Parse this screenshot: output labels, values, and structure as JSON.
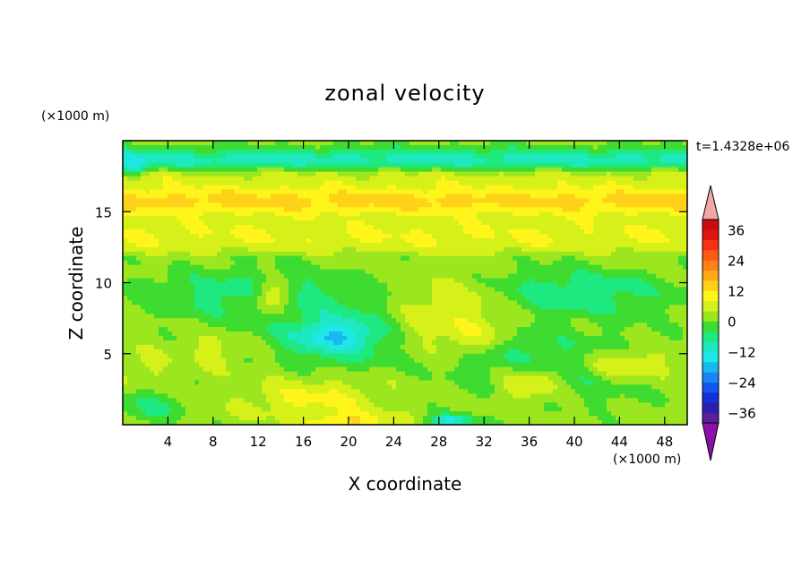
{
  "chart_data": {
    "type": "heatmap",
    "title": "zonal velocity",
    "xlabel": "X coordinate",
    "ylabel": "Z coordinate",
    "x_unit": "(×1000 m)",
    "y_unit": "(×1000 m)",
    "time_label": "t=1.4328e+06",
    "xlim": [
      0,
      50
    ],
    "ylim": [
      0,
      20
    ],
    "x_ticks": [
      4,
      8,
      12,
      16,
      20,
      24,
      28,
      32,
      36,
      40,
      44,
      48
    ],
    "y_ticks": [
      5,
      10,
      15
    ],
    "colorbar": {
      "levels": [
        -40,
        -36,
        -32,
        -28,
        -24,
        -20,
        -16,
        -12,
        -8,
        -4,
        0,
        4,
        8,
        12,
        16,
        20,
        24,
        28,
        32,
        36,
        40
      ],
      "tick_labels": [
        "36",
        "24",
        "12",
        "0",
        "−12",
        "−24",
        "−36"
      ],
      "tick_values": [
        36,
        24,
        12,
        0,
        -12,
        -24,
        -36
      ],
      "colors": [
        "#5a1f96",
        "#2a1fb0",
        "#1630d8",
        "#1456f0",
        "#1a86f5",
        "#18b8f0",
        "#1ee8e6",
        "#1de8c0",
        "#1ee880",
        "#3edc30",
        "#9be61e",
        "#d6f01a",
        "#fff51a",
        "#ffd21a",
        "#ffaa14",
        "#ff8214",
        "#ff5a14",
        "#f53214",
        "#e11414",
        "#c80f0f"
      ],
      "under_color": "#8c0fa8",
      "over_color": "#f2a8a8"
    },
    "fields": {
      "background": 2,
      "blobs": [
        {
          "x": 25,
          "y": 18.6,
          "rx": 28,
          "ry": 0.9,
          "v": -10,
          "kind": "band"
        },
        {
          "x": 25,
          "y": 17.3,
          "rx": 28,
          "ry": 0.7,
          "v": 5,
          "kind": "band"
        },
        {
          "x": 25,
          "y": 15.7,
          "rx": 28,
          "ry": 1.1,
          "v": 14,
          "kind": "band"
        },
        {
          "x": 25,
          "y": 13.3,
          "rx": 28,
          "ry": 1.5,
          "v": 8,
          "kind": "band"
        },
        {
          "x": 25,
          "y": 11.6,
          "rx": 28,
          "ry": 0.35,
          "v": 2,
          "kind": "band"
        },
        {
          "x": 12,
          "y": 9.2,
          "rx": 11,
          "ry": 2.0,
          "v": -6
        },
        {
          "x": 40,
          "y": 9.3,
          "rx": 9,
          "ry": 1.8,
          "v": -7
        },
        {
          "x": 19,
          "y": 6.2,
          "rx": 5.5,
          "ry": 2.0,
          "v": -11
        },
        {
          "x": 19,
          "y": 6.3,
          "rx": 2.5,
          "ry": 0.8,
          "v": -17
        },
        {
          "x": 29,
          "y": 7.6,
          "rx": 4.5,
          "ry": 2.8,
          "v": 8
        },
        {
          "x": 31,
          "y": 6.0,
          "rx": 2.2,
          "ry": 1.0,
          "v": 10
        },
        {
          "x": 13.2,
          "y": 9.0,
          "rx": 1.6,
          "ry": 1.2,
          "v": 7
        },
        {
          "x": 39,
          "y": 4.0,
          "rx": 9,
          "ry": 2.2,
          "v": -8
        },
        {
          "x": 45,
          "y": 4.2,
          "rx": 5,
          "ry": 1.3,
          "v": 7
        },
        {
          "x": 36,
          "y": 2.8,
          "rx": 3,
          "ry": 1.4,
          "v": 8
        },
        {
          "x": 17,
          "y": 1.8,
          "rx": 5.5,
          "ry": 1.4,
          "v": 9
        },
        {
          "x": 20,
          "y": 0.3,
          "rx": 3.5,
          "ry": 0.6,
          "v": 13
        },
        {
          "x": 29,
          "y": 0.3,
          "rx": 2.0,
          "ry": 0.45,
          "v": -13
        },
        {
          "x": 8,
          "y": 5.2,
          "rx": 2.2,
          "ry": 1.1,
          "v": 6
        },
        {
          "x": 2,
          "y": 3.8,
          "rx": 2.5,
          "ry": 1.5,
          "v": 5
        },
        {
          "x": 2.5,
          "y": 1.2,
          "rx": 3,
          "ry": 1.2,
          "v": -5
        },
        {
          "x": 1,
          "y": 18.3,
          "rx": 1.2,
          "ry": 0.6,
          "v": -15
        }
      ]
    }
  }
}
